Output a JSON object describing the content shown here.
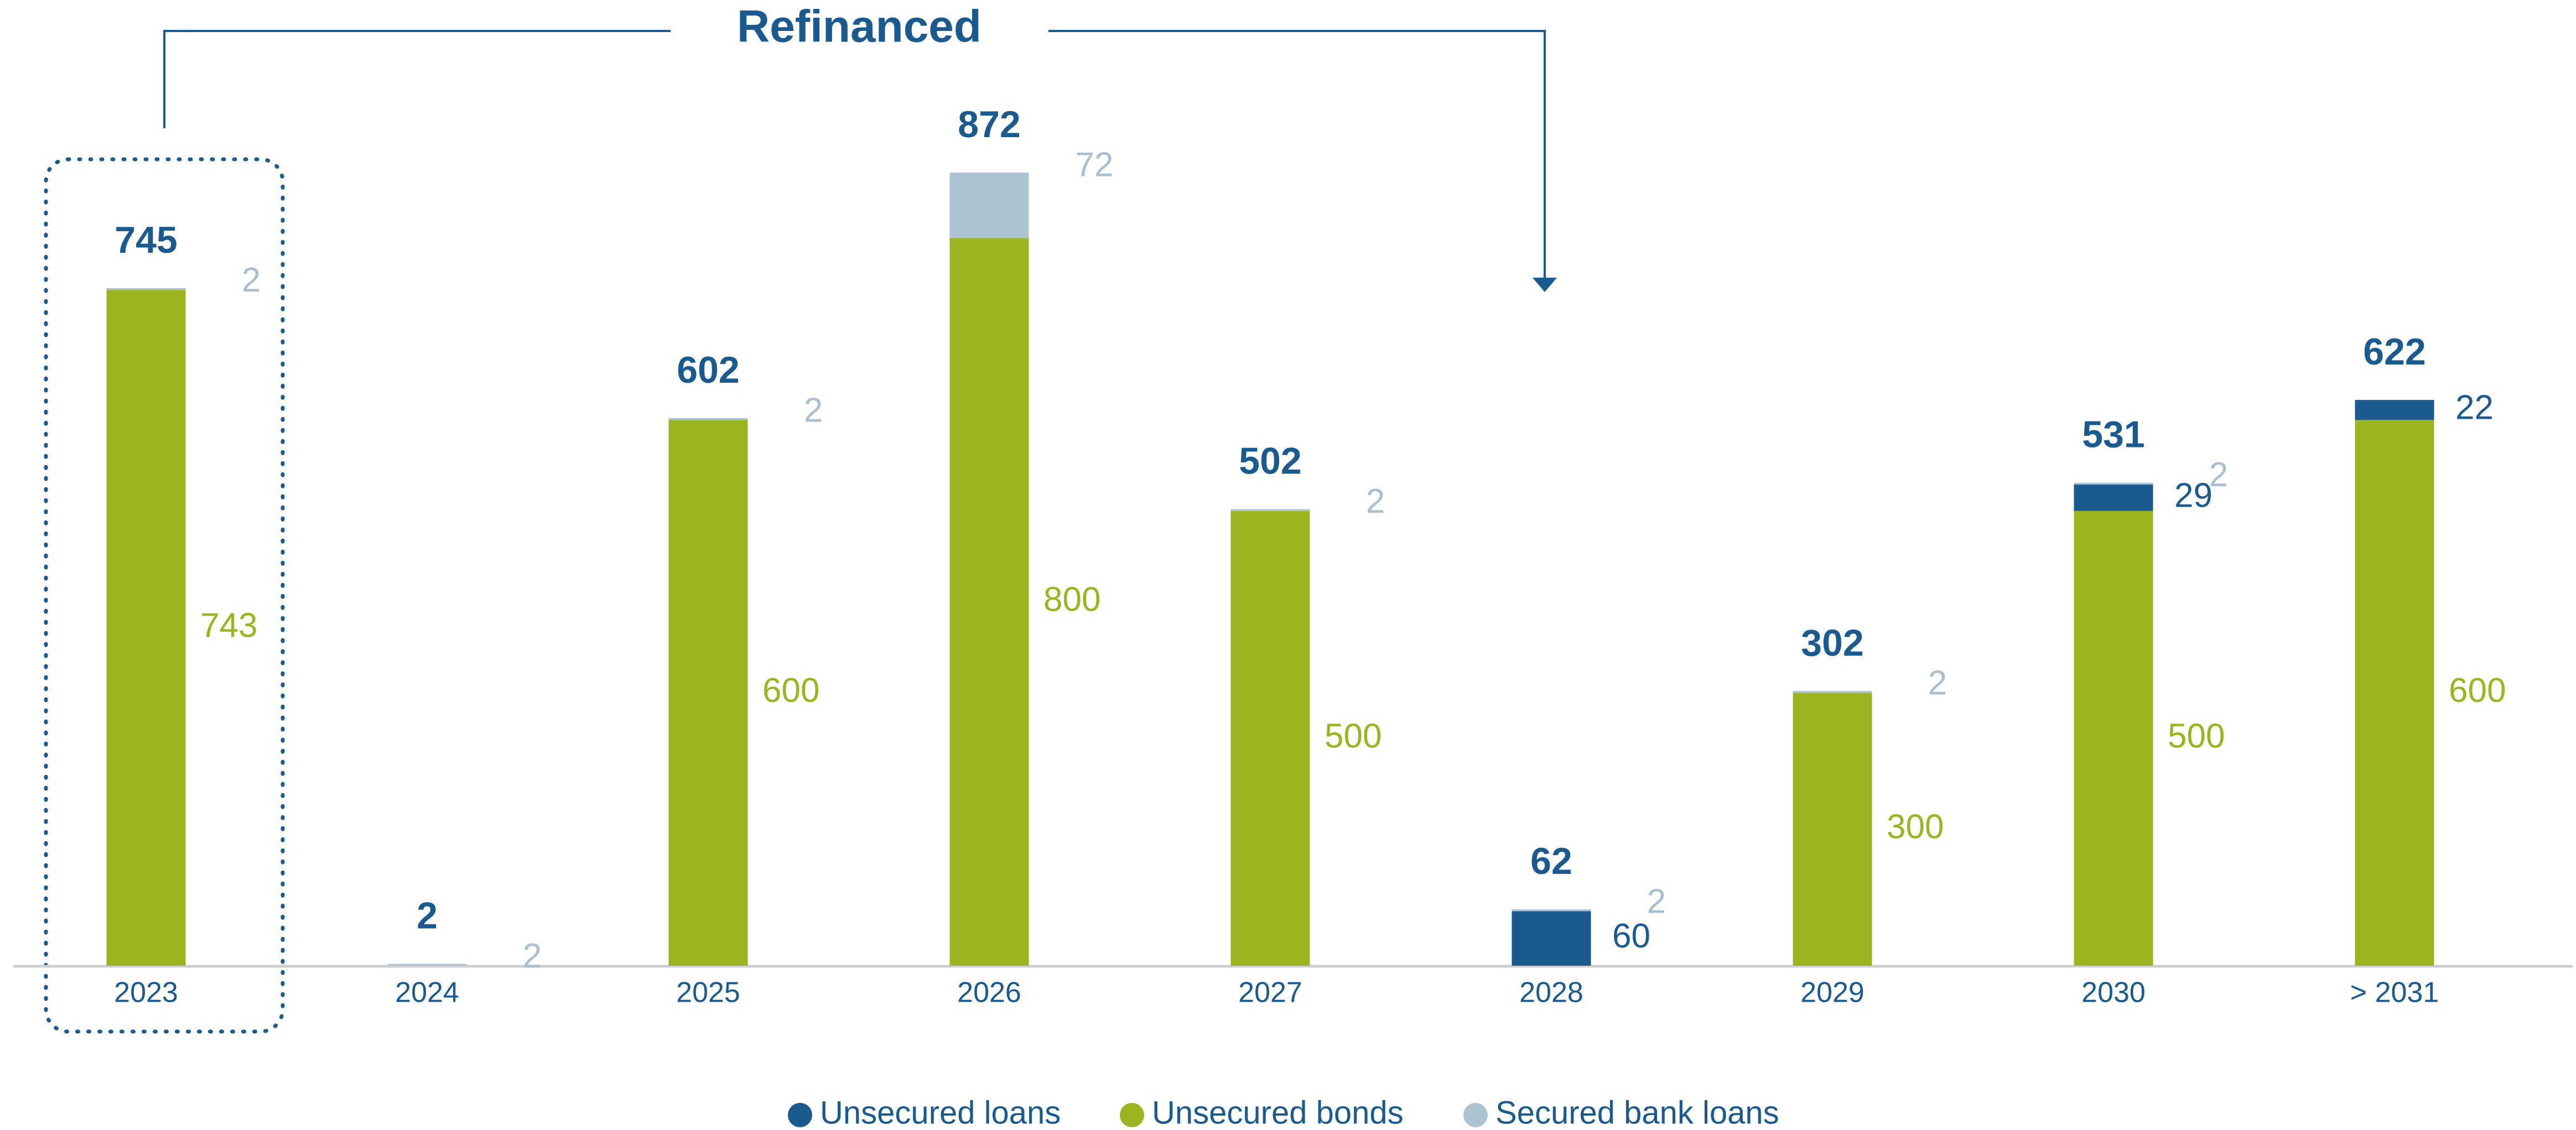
{
  "chart_data": {
    "type": "stacked_bar",
    "annotation": "Refinanced",
    "categories": [
      "2023",
      "2024",
      "2025",
      "2026",
      "2027",
      "2028",
      "2029",
      "2030",
      "> 2031"
    ],
    "series": [
      {
        "name": "Unsecured bonds",
        "color": "#9bb520",
        "values": [
          743,
          null,
          600,
          800,
          500,
          null,
          300,
          500,
          600
        ]
      },
      {
        "name": "Unsecured loans",
        "color": "#1a5a8e",
        "values": [
          null,
          null,
          null,
          null,
          null,
          60,
          null,
          29,
          22
        ]
      },
      {
        "name": "Secured bank loans",
        "color": "#aec3d1",
        "values": [
          2,
          2,
          2,
          72,
          2,
          2,
          2,
          2,
          null
        ]
      }
    ],
    "legend_order": [
      1,
      0,
      2
    ],
    "totals": [
      745,
      2,
      602,
      872,
      502,
      62,
      302,
      531,
      622
    ]
  }
}
